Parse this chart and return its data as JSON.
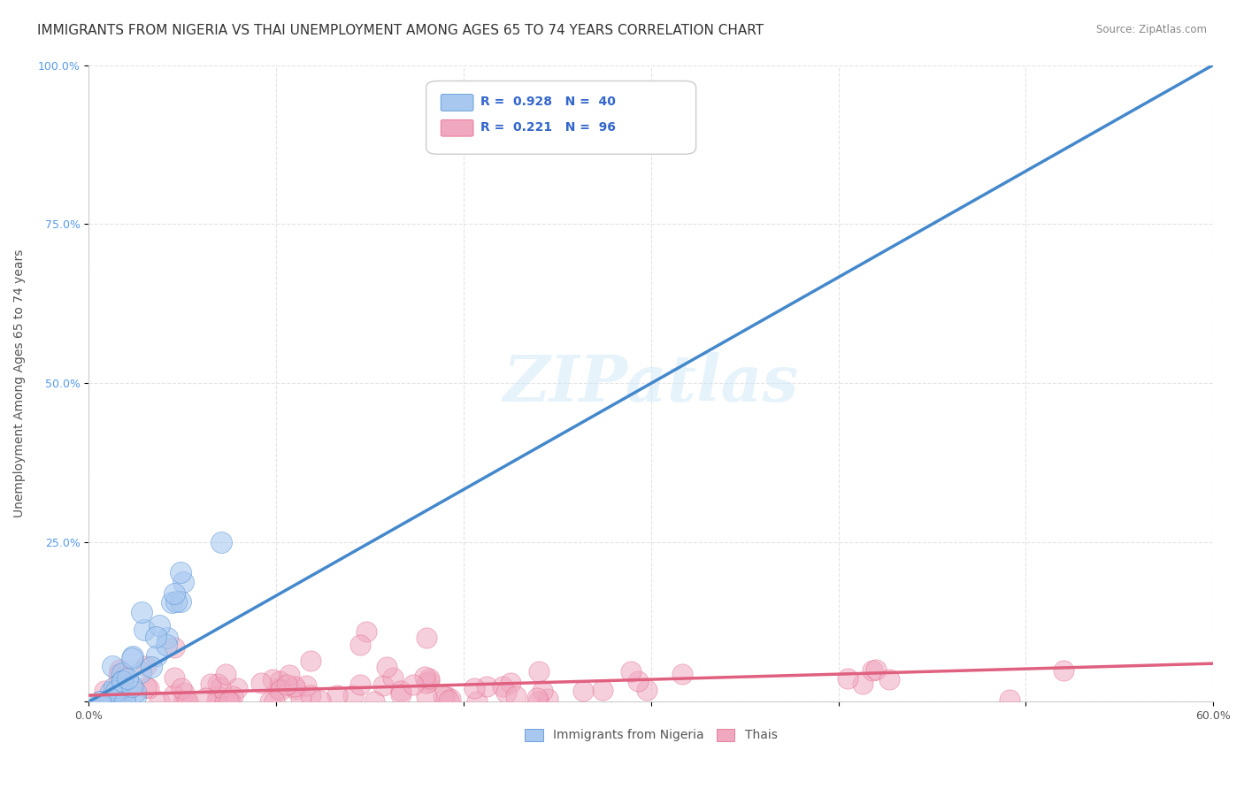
{
  "title": "IMMIGRANTS FROM NIGERIA VS THAI UNEMPLOYMENT AMONG AGES 65 TO 74 YEARS CORRELATION CHART",
  "source": "Source: ZipAtlas.com",
  "ylabel": "Unemployment Among Ages 65 to 74 years",
  "xlim": [
    0,
    0.6
  ],
  "ylim": [
    0,
    1.0
  ],
  "blue_R": 0.928,
  "blue_N": 40,
  "pink_R": 0.221,
  "pink_N": 96,
  "blue_color": "#a8c8f0",
  "blue_line_color": "#4488cc",
  "pink_color": "#f0a8c0",
  "pink_line_color": "#e06080",
  "legend_label_blue": "Immigrants from Nigeria",
  "legend_label_pink": "Thais",
  "background_color": "#ffffff",
  "grid_color": "#dddddd",
  "watermark": "ZIPatlas",
  "title_fontsize": 11,
  "axis_label_fontsize": 10,
  "tick_fontsize": 9,
  "legend_r_color": "#3366cc",
  "tick_color": "#5599ee"
}
